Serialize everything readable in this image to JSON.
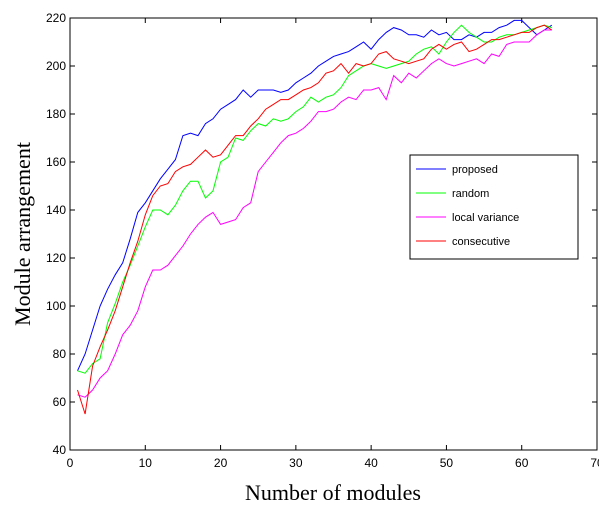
{
  "chart_data": {
    "type": "line",
    "title": "",
    "xlabel": "Number of modules",
    "ylabel": "Module arrangement",
    "xlim": [
      0,
      70
    ],
    "ylim": [
      40,
      220
    ],
    "xticks": [
      0,
      10,
      20,
      30,
      40,
      50,
      60,
      70
    ],
    "yticks": [
      40,
      60,
      80,
      100,
      120,
      140,
      160,
      180,
      200,
      220
    ],
    "grid": false,
    "legend_position": "right",
    "x": [
      1,
      2,
      3,
      4,
      5,
      6,
      7,
      8,
      9,
      10,
      11,
      12,
      13,
      14,
      15,
      16,
      17,
      18,
      19,
      20,
      21,
      22,
      23,
      24,
      25,
      26,
      27,
      28,
      29,
      30,
      31,
      32,
      33,
      34,
      35,
      36,
      37,
      38,
      39,
      40,
      41,
      42,
      43,
      44,
      45,
      46,
      47,
      48,
      49,
      50,
      51,
      52,
      53,
      54,
      55,
      56,
      57,
      58,
      59,
      60,
      61,
      62,
      63,
      64
    ],
    "series": [
      {
        "name": "proposed",
        "color": "#0000ff",
        "values": [
          73,
          80,
          90,
          100,
          107,
          113,
          118,
          128,
          139,
          143,
          148,
          153,
          157,
          161,
          171,
          172,
          171,
          176,
          178,
          182,
          184,
          186,
          190,
          187,
          190,
          190,
          190,
          189,
          190,
          193,
          195,
          197,
          200,
          202,
          204,
          205,
          206,
          208,
          210,
          207,
          211,
          214,
          216,
          215,
          213,
          213,
          212,
          215,
          213,
          214,
          211,
          211,
          213,
          212,
          214,
          214,
          216,
          217,
          219,
          219,
          216,
          213,
          215,
          217
        ]
      },
      {
        "name": "random",
        "color": "#00ff00",
        "values": [
          73,
          72,
          76,
          78,
          93,
          101,
          110,
          117,
          125,
          133,
          140,
          140,
          138,
          142,
          148,
          152,
          152,
          145,
          148,
          160,
          162,
          170,
          169,
          173,
          176,
          175,
          178,
          177,
          178,
          181,
          183,
          187,
          185,
          187,
          188,
          191,
          196,
          198,
          200,
          201,
          200,
          199,
          200,
          201,
          202,
          205,
          207,
          208,
          205,
          210,
          214,
          217,
          214,
          212,
          210,
          210,
          212,
          213,
          213,
          214,
          215,
          216,
          217,
          216
        ]
      },
      {
        "name": "local variance",
        "color": "#ff00ff",
        "values": [
          63,
          62,
          65,
          70,
          73,
          80,
          88,
          92,
          98,
          108,
          115,
          115,
          117,
          121,
          125,
          130,
          134,
          137,
          139,
          134,
          135,
          136,
          141,
          143,
          156,
          160,
          164,
          168,
          171,
          172,
          174,
          177,
          181,
          181,
          182,
          185,
          187,
          186,
          190,
          190,
          191,
          186,
          196,
          193,
          197,
          195,
          198,
          201,
          203,
          201,
          200,
          201,
          202,
          203,
          201,
          205,
          204,
          209,
          210,
          210,
          210,
          213,
          215,
          215
        ]
      },
      {
        "name": "consecutive",
        "color": "#ff0000",
        "values": [
          65,
          55,
          75,
          83,
          90,
          98,
          108,
          118,
          127,
          138,
          146,
          150,
          151,
          156,
          158,
          159,
          162,
          165,
          162,
          163,
          167,
          171,
          171,
          175,
          178,
          182,
          184,
          186,
          186,
          188,
          190,
          191,
          193,
          197,
          198,
          201,
          197,
          201,
          200,
          201,
          205,
          206,
          203,
          202,
          201,
          202,
          203,
          207,
          209,
          207,
          209,
          210,
          206,
          207,
          209,
          211,
          211,
          212,
          213,
          214,
          214,
          216,
          217,
          215
        ]
      }
    ]
  }
}
